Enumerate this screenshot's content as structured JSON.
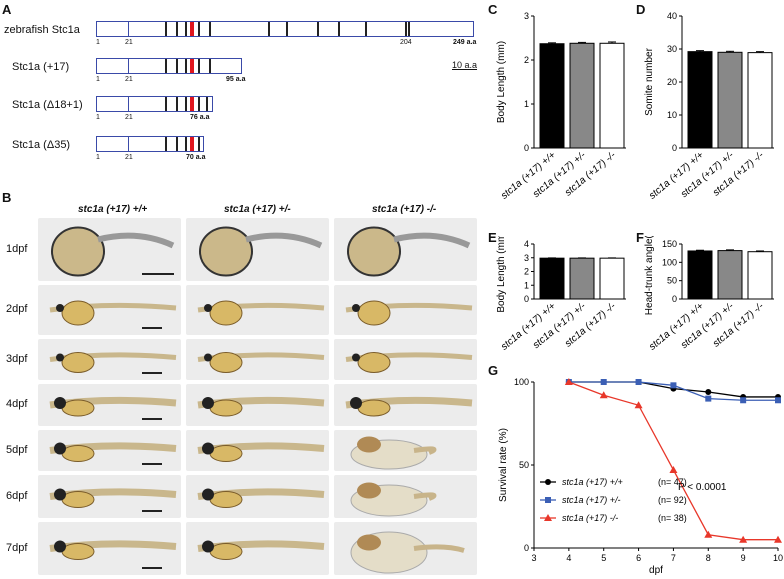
{
  "panels": {
    "A": "A",
    "B": "B",
    "C": "C",
    "D": "D",
    "E": "E",
    "F": "F",
    "G": "G"
  },
  "panel_a": {
    "proteins": [
      {
        "name": "zebrafish Stc1a",
        "start": "1",
        "pos21": "21",
        "extra": "204",
        "end": "249 a.a"
      },
      {
        "name": "Stc1a (+17)",
        "start": "1",
        "pos21": "21",
        "end": "95 a.a"
      },
      {
        "name": "Stc1a (Δ18+1)",
        "start": "1",
        "pos21": "21",
        "end": "76 a.a"
      },
      {
        "name": "Stc1a (Δ35)",
        "start": "1",
        "pos21": "21",
        "end": "70 a.a"
      }
    ],
    "scale_label": "10 a.a"
  },
  "panel_b": {
    "columns": [
      "stc1a (+17) +/+",
      "stc1a (+17) +/-",
      "stc1a (+17) -/-"
    ],
    "rows": [
      "1dpf",
      "2dpf",
      "3dpf",
      "4dpf",
      "5dpf",
      "6dpf",
      "7dpf"
    ]
  },
  "chart_data": [
    {
      "panel": "C",
      "type": "bar",
      "categories": [
        "stc1a (+17) +/+",
        "stc1a (+17) +/-",
        "stc1a (+17) -/-"
      ],
      "values": [
        2.37,
        2.38,
        2.38
      ],
      "errors": [
        0.02,
        0.02,
        0.03
      ],
      "colors": [
        "#000000",
        "#888888",
        "#ffffff"
      ],
      "ylabel": "Body Length (mm)",
      "ylim": [
        0,
        3
      ],
      "yticks": [
        "0",
        "1",
        "2",
        "3"
      ]
    },
    {
      "panel": "D",
      "type": "bar",
      "categories": [
        "stc1a (+17) +/+",
        "stc1a (+17) +/-",
        "stc1a (+17) -/-"
      ],
      "values": [
        29.2,
        29.0,
        28.9
      ],
      "errors": [
        0.3,
        0.3,
        0.3
      ],
      "colors": [
        "#000000",
        "#888888",
        "#ffffff"
      ],
      "ylabel": "Somite number",
      "ylim": [
        0,
        40
      ],
      "yticks": [
        "0",
        "10",
        "20",
        "30",
        "40"
      ]
    },
    {
      "panel": "E",
      "type": "bar",
      "categories": [
        "stc1a (+17) +/+",
        "stc1a (+17) +/-",
        "stc1a (+17) -/-"
      ],
      "values": [
        2.97,
        2.97,
        2.97
      ],
      "errors": [
        0.02,
        0.02,
        0.02
      ],
      "colors": [
        "#000000",
        "#888888",
        "#ffffff"
      ],
      "ylabel": "Body Length (mm)",
      "ylim": [
        0,
        4
      ],
      "yticks": [
        "0",
        "1",
        "2",
        "3",
        "4"
      ]
    },
    {
      "panel": "F",
      "type": "bar",
      "categories": [
        "stc1a (+17) +/+",
        "stc1a (+17) +/-",
        "stc1a (+17) -/-"
      ],
      "values": [
        131,
        132,
        129
      ],
      "errors": [
        2,
        2,
        2
      ],
      "colors": [
        "#000000",
        "#888888",
        "#ffffff"
      ],
      "ylabel": "Head-trunk angle(°)",
      "ylim": [
        0,
        150
      ],
      "yticks": [
        "0",
        "50",
        "100",
        "150"
      ]
    },
    {
      "panel": "G",
      "type": "line",
      "x": [
        3,
        4,
        5,
        6,
        7,
        8,
        9,
        10
      ],
      "series": [
        {
          "name": "stc1a (+17) +/+",
          "n": "(n= 47)",
          "color": "#000000",
          "marker": "circle",
          "values": [
            null,
            100,
            100,
            100,
            96,
            94,
            91,
            91
          ]
        },
        {
          "name": "stc1a (+17) +/-",
          "n": "(n= 92)",
          "color": "#3b5fb5",
          "marker": "square",
          "values": [
            null,
            100,
            100,
            100,
            98,
            90,
            89,
            89
          ]
        },
        {
          "name": "stc1a (+17) -/-",
          "n": "(n= 38)",
          "color": "#e8372a",
          "marker": "triangle",
          "values": [
            null,
            100,
            92,
            86,
            47,
            8,
            5,
            5
          ]
        }
      ],
      "xlabel": "dpf",
      "ylabel": "Survival rate (%)",
      "xlim": [
        3,
        10
      ],
      "ylim": [
        0,
        100
      ],
      "xticks": [
        "3",
        "4",
        "5",
        "6",
        "7",
        "8",
        "9",
        "10"
      ],
      "yticks": [
        "0",
        "50",
        "100"
      ],
      "annotation": "P < 0.0001"
    }
  ]
}
